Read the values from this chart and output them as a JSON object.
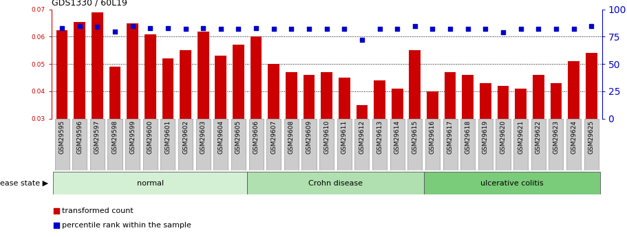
{
  "title": "GDS1330 / 60L19",
  "samples": [
    "GSM29595",
    "GSM29596",
    "GSM29597",
    "GSM29598",
    "GSM29599",
    "GSM29600",
    "GSM29601",
    "GSM29602",
    "GSM29603",
    "GSM29604",
    "GSM29605",
    "GSM29606",
    "GSM29607",
    "GSM29608",
    "GSM29609",
    "GSM29610",
    "GSM29611",
    "GSM29612",
    "GSM29613",
    "GSM29614",
    "GSM29615",
    "GSM29616",
    "GSM29617",
    "GSM29618",
    "GSM29619",
    "GSM29620",
    "GSM29621",
    "GSM29622",
    "GSM29623",
    "GSM29624",
    "GSM29625"
  ],
  "bar_values": [
    0.0625,
    0.0655,
    0.069,
    0.049,
    0.065,
    0.061,
    0.052,
    0.055,
    0.062,
    0.053,
    0.057,
    0.06,
    0.05,
    0.047,
    0.046,
    0.047,
    0.045,
    0.035,
    0.044,
    0.041,
    0.055,
    0.04,
    0.047,
    0.046,
    0.043,
    0.042,
    0.041,
    0.046,
    0.043,
    0.051,
    0.054
  ],
  "percentile_values": [
    83,
    85,
    84,
    80,
    85,
    83,
    83,
    82,
    83,
    82,
    82,
    83,
    82,
    82,
    82,
    82,
    82,
    72,
    82,
    82,
    85,
    82,
    82,
    82,
    82,
    79,
    82,
    82,
    82,
    82,
    85
  ],
  "groups": [
    {
      "label": "normal",
      "start": 0,
      "end": 10,
      "color": "#d4f0d4"
    },
    {
      "label": "Crohn disease",
      "start": 11,
      "end": 20,
      "color": "#b0e0b0"
    },
    {
      "label": "ulcerative colitis",
      "start": 21,
      "end": 30,
      "color": "#7acc7a"
    }
  ],
  "bar_color": "#cc0000",
  "dot_color": "#0000cc",
  "ylim_left": [
    0.03,
    0.07
  ],
  "ylim_right": [
    0,
    100
  ],
  "yticks_left": [
    0.03,
    0.04,
    0.05,
    0.06,
    0.07
  ],
  "yticks_right": [
    0,
    25,
    50,
    75,
    100
  ],
  "grid_values": [
    0.04,
    0.05,
    0.06
  ],
  "legend_items": [
    {
      "label": "transformed count",
      "color": "#cc0000"
    },
    {
      "label": "percentile rank within the sample",
      "color": "#0000cc"
    }
  ],
  "disease_state_label": "disease state",
  "title_fontsize": 9,
  "tick_fontsize": 6.5,
  "label_fontsize": 8,
  "tick_box_color": "#cccccc",
  "tick_box_edge": "#999999"
}
